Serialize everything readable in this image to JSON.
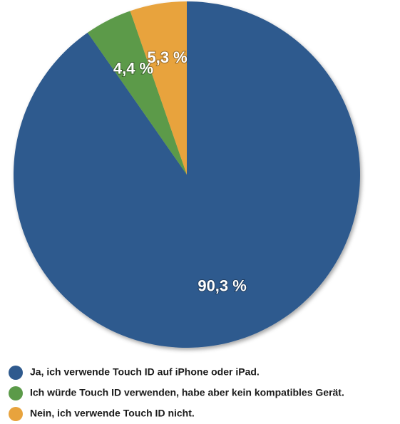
{
  "chart_data": {
    "type": "pie",
    "categories": [
      "Ja, ich verwende Touch ID auf iPhone oder iPad.",
      "Ich würde Touch ID verwenden, habe aber kein kompatibles Gerät.",
      "Nein, ich verwende Touch ID nicht."
    ],
    "values": [
      90.3,
      4.4,
      5.3
    ],
    "value_labels": [
      "90,3 %",
      "4,4 %",
      "5,3 %"
    ],
    "colors": [
      "#2f5a8e",
      "#5b9a49",
      "#e8a33d"
    ]
  }
}
